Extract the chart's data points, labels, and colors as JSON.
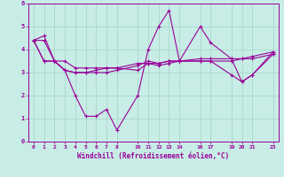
{
  "background_color": "#c8ece6",
  "line_color": "#990099",
  "xlabel": "Windchill (Refroidissement éolien,°C)",
  "ylim": [
    0,
    6
  ],
  "yticks": [
    0,
    1,
    2,
    3,
    4,
    5,
    6
  ],
  "xlim": [
    -0.5,
    23.5
  ],
  "xticks": [
    0,
    1,
    2,
    3,
    4,
    5,
    6,
    7,
    8,
    10,
    11,
    12,
    13,
    14,
    16,
    17,
    19,
    20,
    21,
    23
  ],
  "grid_color": "#a8d8cc",
  "lines": [
    {
      "x": [
        0,
        1,
        2,
        3,
        4,
        5,
        6,
        7,
        8,
        10,
        11,
        12,
        13,
        14,
        16,
        17,
        19,
        20,
        21,
        23
      ],
      "y": [
        4.4,
        4.6,
        3.5,
        3.1,
        2.0,
        1.1,
        1.1,
        1.4,
        0.5,
        2.0,
        4.0,
        5.0,
        5.7,
        3.5,
        5.0,
        4.3,
        3.6,
        2.6,
        2.9,
        3.9
      ]
    },
    {
      "x": [
        0,
        1,
        2,
        3,
        4,
        5,
        6,
        7,
        8,
        10,
        11,
        12,
        13,
        14,
        16,
        17,
        19,
        20,
        21,
        23
      ],
      "y": [
        4.4,
        4.4,
        3.5,
        3.5,
        3.2,
        3.2,
        3.2,
        3.2,
        3.2,
        3.4,
        3.4,
        3.4,
        3.5,
        3.5,
        3.6,
        3.6,
        3.6,
        3.6,
        3.7,
        3.9
      ]
    },
    {
      "x": [
        0,
        1,
        2,
        3,
        4,
        5,
        6,
        7,
        8,
        10,
        11,
        12,
        13,
        14,
        16,
        17,
        19,
        20,
        21,
        23
      ],
      "y": [
        4.4,
        3.5,
        3.5,
        3.1,
        3.0,
        3.0,
        3.0,
        3.0,
        3.1,
        3.3,
        3.5,
        3.4,
        3.5,
        3.5,
        3.5,
        3.5,
        3.5,
        3.6,
        3.6,
        3.8
      ]
    },
    {
      "x": [
        0,
        1,
        2,
        3,
        4,
        5,
        6,
        7,
        8,
        10,
        11,
        12,
        13,
        14,
        16,
        17,
        19,
        20,
        21,
        23
      ],
      "y": [
        4.4,
        3.5,
        3.5,
        3.1,
        3.0,
        3.0,
        3.1,
        3.2,
        3.2,
        3.1,
        3.4,
        3.3,
        3.4,
        3.5,
        3.5,
        3.5,
        2.9,
        2.6,
        2.9,
        3.8
      ]
    }
  ]
}
